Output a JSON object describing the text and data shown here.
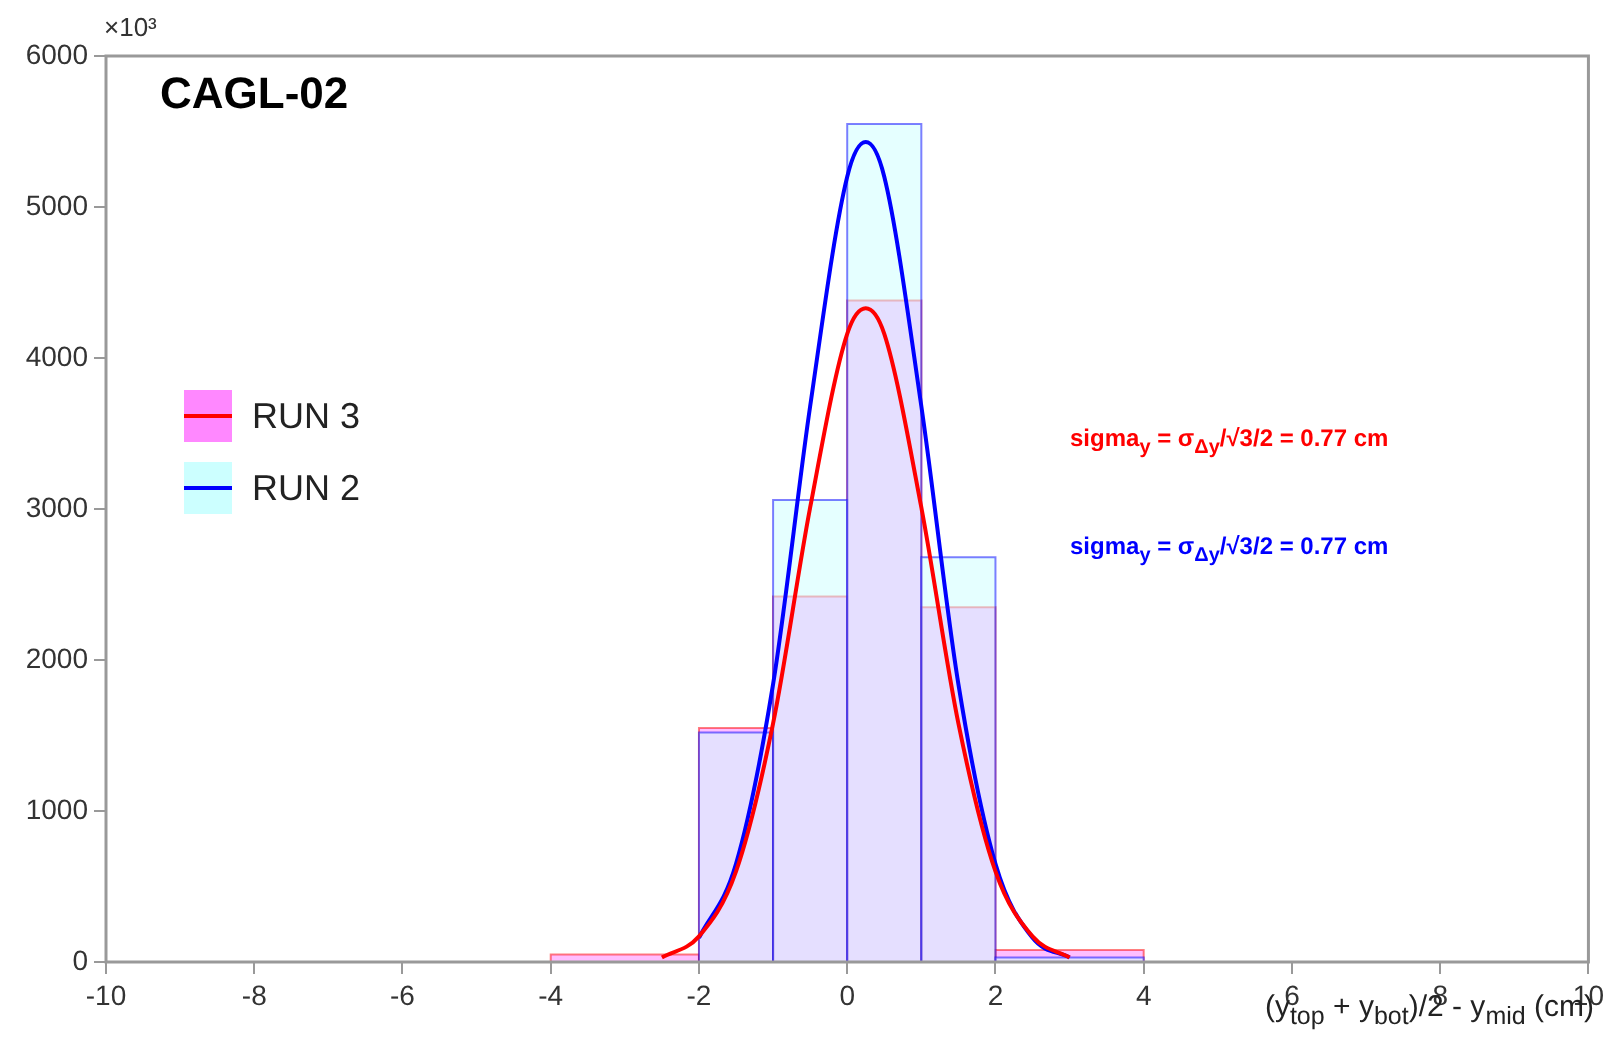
{
  "chart_data": {
    "type": "histogram",
    "title": "CAGL-02",
    "xlabel": "(y$_{top}$ + y$_{bot}$)/2 - y$_{mid}$ (cm)",
    "ylabel": "×10³",
    "bins": [
      -4,
      -2,
      -1,
      0,
      1,
      2,
      4
    ],
    "series": [
      {
        "type": "histogram",
        "name": "RUN 3",
        "color": "#ff88ff",
        "values": [
          50,
          1550,
          2420,
          4380,
          2350,
          80
        ]
      },
      {
        "type": "histogram",
        "name": "RUN 2",
        "color": "#ccffff",
        "values": [
          null,
          1520,
          3060,
          5550,
          2680,
          30
        ]
      },
      {
        "type": "line",
        "color": "#ff0000",
        "x": [
          -2.5,
          -2,
          -1.5,
          -1,
          -0.5,
          0,
          0.25,
          0.5,
          1,
          1.5,
          2,
          2.5,
          3
        ],
        "values": [
          30,
          170,
          600,
          1580,
          3010,
          4160,
          4330,
          4160,
          3010,
          1580,
          600,
          170,
          30
        ]
      },
      {
        "type": "line",
        "color": "#0000ff",
        "x": [
          -2,
          -1.5,
          -1,
          -0.5,
          0,
          0.25,
          0.5,
          1,
          1.5,
          2,
          2.5,
          3
        ],
        "values": [
          160,
          650,
          1840,
          3680,
          5200,
          5430,
          5200,
          3680,
          1840,
          650,
          160,
          30
        ]
      }
    ],
    "annotations": [
      "sigma$_{y}$ = σ$_{Δy}$/√3/2 = 0.77 cm",
      "sigma$_{y}$ = σ$_{Δy}$/√3/2 = 0.77 cm"
    ],
    "xlim": [
      -10,
      10
    ],
    "xticks": [
      -10,
      -8,
      -6,
      -4,
      -2,
      0,
      2,
      4,
      6,
      8,
      10
    ],
    "ylim": [
      0,
      6000
    ],
    "yticks": [
      0,
      1000,
      2000,
      3000,
      4000,
      5000,
      6000
    ],
    "grid": false,
    "legend": "left"
  }
}
